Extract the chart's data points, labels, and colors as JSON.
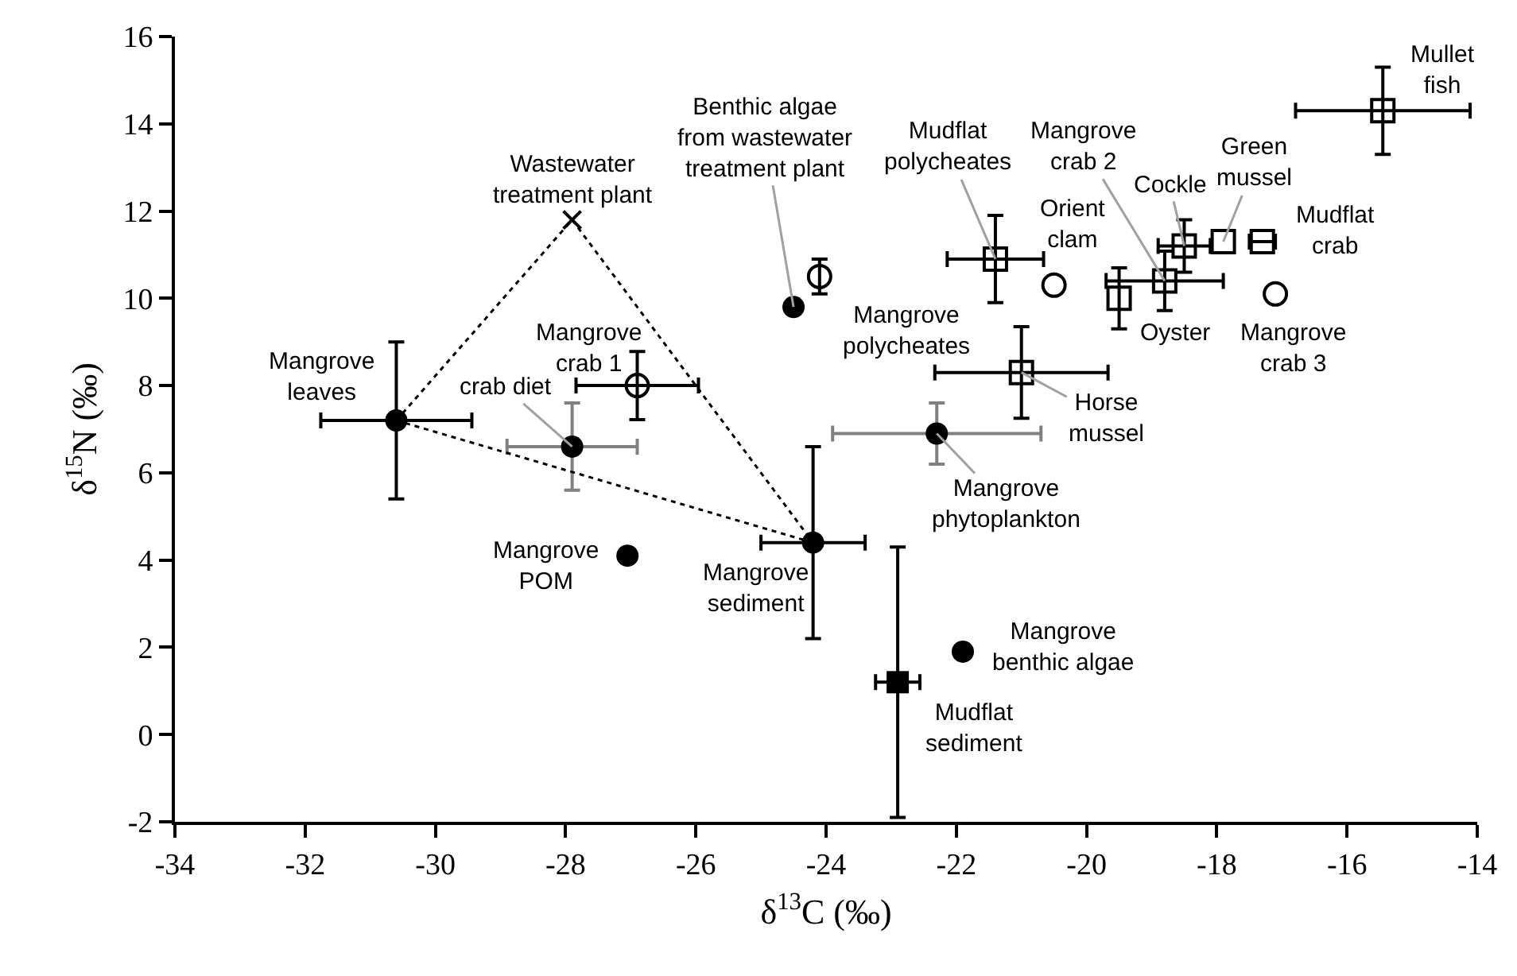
{
  "chart_data": {
    "type": "scatter",
    "xlabel": "δ$^{13}$C (‰)",
    "ylabel": "δ$^{15}$N (‰)",
    "xlim": [
      -34,
      -14
    ],
    "xticks": [
      -34,
      -32,
      -30,
      -28,
      -26,
      -24,
      -22,
      -20,
      -18,
      -16,
      -14
    ],
    "ylim": [
      -2,
      16
    ],
    "yticks": [
      -2,
      0,
      2,
      4,
      6,
      8,
      10,
      12,
      14,
      16
    ],
    "legend": false,
    "series": [
      {
        "name": "Mangrove leaves",
        "color": "#000000",
        "marker": "circle",
        "x": [
          -30.6
        ],
        "values": [
          7.2
        ],
        "errors": [
          1.8
        ],
        "xerrors": [
          1.16
        ]
      },
      {
        "name": "crab diet",
        "color": "#000000",
        "marker": "circle",
        "x": [
          -27.9
        ],
        "values": [
          6.6
        ],
        "errors": [
          1.0
        ],
        "xerrors": [
          1.0
        ]
      },
      {
        "name": "Mangrove crab 1",
        "color": "#000000",
        "marker": "circle",
        "x": [
          -26.9
        ],
        "values": [
          8.0
        ],
        "errors": [
          0.78
        ],
        "xerrors": [
          0.94
        ]
      },
      {
        "name": "Wastewater treatment plant",
        "color": "#000000",
        "marker": "cross",
        "x": [
          -27.9
        ],
        "values": [
          11.8
        ]
      },
      {
        "name": "Benthic algae from wastewater treatment plant",
        "color": "#000000",
        "marker": "circle",
        "x": [
          -24.5
        ],
        "values": [
          9.8
        ]
      },
      {
        "color": "#000000",
        "marker": "circle",
        "x": [
          -24.1
        ],
        "values": [
          10.5
        ],
        "errors": [
          0.4
        ]
      },
      {
        "name": "Mudflat polycheates",
        "color": "#000000",
        "marker": "square",
        "x": [
          -21.4
        ],
        "values": [
          10.9
        ],
        "errors": [
          1.0
        ],
        "xerrors": [
          0.74
        ]
      },
      {
        "name": "Orient clam",
        "color": "#000000",
        "marker": "circle",
        "x": [
          -20.5
        ],
        "values": [
          10.3
        ]
      },
      {
        "name": "Oyster",
        "color": "#000000",
        "marker": "square",
        "x": [
          -19.5
        ],
        "values": [
          10.0
        ],
        "errors": [
          0.7
        ]
      },
      {
        "name": "Mangrove crab 2",
        "color": "#000000",
        "marker": "square",
        "x": [
          -18.8
        ],
        "values": [
          10.4
        ],
        "errors": [
          0.68
        ],
        "xerrors": [
          0.9
        ]
      },
      {
        "name": "Cockle",
        "color": "#000000",
        "marker": "square",
        "x": [
          -18.5
        ],
        "values": [
          11.2
        ],
        "errors": [
          0.6
        ],
        "xerrors": [
          0.4
        ]
      },
      {
        "name": "Green mussel",
        "color": "#000000",
        "marker": "square",
        "x": [
          -17.9
        ],
        "values": [
          11.3
        ]
      },
      {
        "name": "Mudflat crab",
        "color": "#000000",
        "marker": "square",
        "x": [
          -17.3
        ],
        "values": [
          11.3
        ],
        "xerrors": [
          0.2
        ]
      },
      {
        "name": "Mangrove crab 3",
        "color": "#000000",
        "marker": "circle",
        "x": [
          -17.1
        ],
        "values": [
          10.1
        ]
      },
      {
        "name": "Mullet fish",
        "color": "#000000",
        "marker": "square",
        "x": [
          -15.45
        ],
        "values": [
          14.3
        ],
        "errors": [
          1.0
        ],
        "xerrors": [
          1.34
        ]
      },
      {
        "name": "Mangrove polycheates",
        "color": "#000000",
        "marker": "square",
        "x": [
          -21.0
        ],
        "values": [
          8.3
        ],
        "errors": [
          1.05
        ],
        "xerrors": [
          1.33
        ]
      },
      {
        "name": "Mangrove phytoplankton",
        "color": "#000000",
        "marker": "circle",
        "x": [
          -22.3
        ],
        "values": [
          6.9
        ],
        "errors": [
          0.7
        ],
        "xerrors": [
          1.6
        ]
      },
      {
        "name": "Mangrove sediment",
        "color": "#000000",
        "marker": "circle",
        "x": [
          -24.2
        ],
        "values": [
          4.4
        ],
        "errors": [
          2.2
        ],
        "xerrors": [
          0.8
        ]
      },
      {
        "name": "Mudflat sediment",
        "color": "#000000",
        "marker": "square",
        "x": [
          -22.9
        ],
        "values": [
          1.2
        ],
        "errors": [
          3.1
        ],
        "xerrors": [
          0.34
        ]
      },
      {
        "name": "Mangrove benthic algae",
        "color": "#000000",
        "marker": "circle",
        "x": [
          -21.9
        ],
        "values": [
          1.9
        ]
      },
      {
        "name": "Mangrove POM",
        "color": "#000000",
        "marker": "circle",
        "x": [
          -27.05
        ],
        "values": [
          4.1
        ]
      },
      {
        "type": "line",
        "color": "#000000",
        "line_style": "dotted",
        "x": [
          -30.6,
          -27.9,
          -24.2
        ],
        "values": [
          7.2,
          11.8,
          4.4
        ]
      },
      {
        "type": "line",
        "color": "#000000",
        "line_style": "dotted",
        "x": [
          -30.6,
          -24.2
        ],
        "values": [
          7.2,
          4.4
        ]
      }
    ],
    "annotations": [
      {
        "text": "Horse mussel",
        "x": -21.0,
        "y": 8.3
      }
    ]
  }
}
